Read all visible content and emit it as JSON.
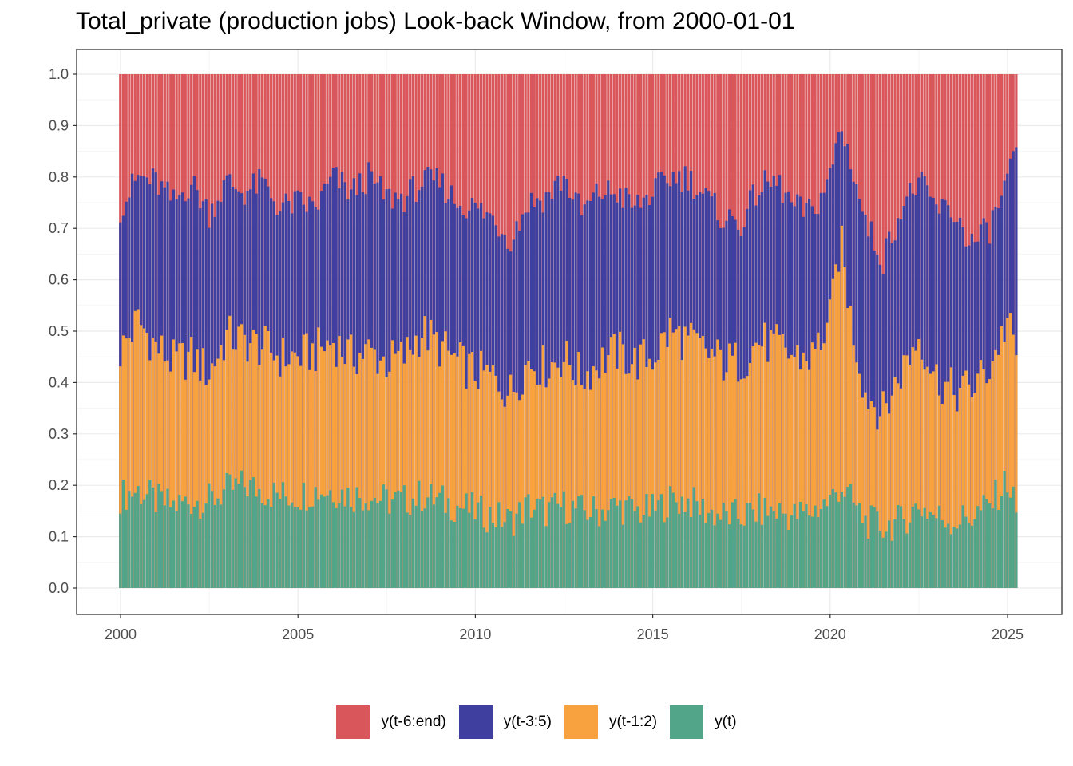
{
  "chart_data": {
    "type": "bar",
    "stacked": true,
    "title": "Total_private (production jobs) Look-back Window, from 2000-01-01",
    "xlabel": "",
    "ylabel": "",
    "ylim": [
      0,
      1.0
    ],
    "xlim": [
      1998.75,
      2026.3
    ],
    "y_ticks": [
      "0.0",
      "0.1",
      "0.2",
      "0.3",
      "0.4",
      "0.5",
      "0.6",
      "0.7",
      "0.8",
      "0.9",
      "1.0"
    ],
    "x_ticks": [
      "2000",
      "2005",
      "2010",
      "2015",
      "2020",
      "2025"
    ],
    "grid": true,
    "legend_position": "bottom",
    "frequency": "monthly",
    "start": "2000-01",
    "end": "2025-04",
    "x_anchor_dates": [
      2000.0,
      2000.5,
      2001.0,
      2001.5,
      2002.0,
      2002.5,
      2003.0,
      2003.5,
      2004.0,
      2004.5,
      2005.0,
      2005.5,
      2006.0,
      2006.5,
      2007.0,
      2007.5,
      2008.0,
      2008.5,
      2009.0,
      2009.5,
      2010.0,
      2010.5,
      2011.0,
      2011.5,
      2012.0,
      2012.5,
      2013.0,
      2013.5,
      2014.0,
      2014.5,
      2015.0,
      2015.5,
      2016.0,
      2016.5,
      2017.0,
      2017.5,
      2018.0,
      2018.5,
      2019.0,
      2019.5,
      2020.0,
      2020.3,
      2020.6,
      2021.0,
      2021.5,
      2022.0,
      2022.5,
      2023.0,
      2023.5,
      2024.0,
      2024.5,
      2025.0,
      2025.25
    ],
    "series": [
      {
        "name": "y(t)",
        "color": "#52A589",
        "anchor_cumulative": [
          0.18,
          0.19,
          0.17,
          0.16,
          0.17,
          0.17,
          0.19,
          0.2,
          0.19,
          0.18,
          0.18,
          0.19,
          0.19,
          0.18,
          0.18,
          0.17,
          0.17,
          0.18,
          0.17,
          0.16,
          0.15,
          0.14,
          0.13,
          0.16,
          0.15,
          0.16,
          0.15,
          0.15,
          0.16,
          0.15,
          0.15,
          0.17,
          0.17,
          0.15,
          0.14,
          0.14,
          0.15,
          0.15,
          0.14,
          0.15,
          0.17,
          0.2,
          0.17,
          0.13,
          0.12,
          0.13,
          0.16,
          0.14,
          0.13,
          0.14,
          0.16,
          0.21,
          0.15
        ]
      },
      {
        "name": "y(t-1:2)",
        "color": "#F7A23F",
        "anchor_cumulative": [
          0.46,
          0.52,
          0.47,
          0.44,
          0.45,
          0.42,
          0.49,
          0.48,
          0.47,
          0.45,
          0.45,
          0.46,
          0.48,
          0.45,
          0.46,
          0.44,
          0.45,
          0.5,
          0.47,
          0.44,
          0.42,
          0.41,
          0.38,
          0.44,
          0.43,
          0.45,
          0.41,
          0.44,
          0.46,
          0.44,
          0.45,
          0.5,
          0.48,
          0.46,
          0.44,
          0.44,
          0.48,
          0.47,
          0.45,
          0.45,
          0.52,
          0.68,
          0.52,
          0.38,
          0.34,
          0.42,
          0.49,
          0.41,
          0.38,
          0.39,
          0.43,
          0.52,
          0.45
        ]
      },
      {
        "name": "y(t-3:5)",
        "color": "#3F3F9F",
        "anchor_cumulative": [
          0.74,
          0.8,
          0.79,
          0.75,
          0.79,
          0.73,
          0.79,
          0.77,
          0.79,
          0.74,
          0.75,
          0.74,
          0.8,
          0.77,
          0.8,
          0.76,
          0.76,
          0.79,
          0.79,
          0.75,
          0.74,
          0.72,
          0.68,
          0.75,
          0.76,
          0.8,
          0.73,
          0.77,
          0.77,
          0.74,
          0.77,
          0.8,
          0.8,
          0.76,
          0.72,
          0.71,
          0.78,
          0.79,
          0.74,
          0.73,
          0.8,
          0.9,
          0.83,
          0.71,
          0.64,
          0.74,
          0.79,
          0.74,
          0.73,
          0.67,
          0.7,
          0.79,
          0.84
        ]
      },
      {
        "name": "y(t-6:end)",
        "color": "#D9575B",
        "anchor_cumulative": [
          1.0,
          1.0,
          1.0,
          1.0,
          1.0,
          1.0,
          1.0,
          1.0,
          1.0,
          1.0,
          1.0,
          1.0,
          1.0,
          1.0,
          1.0,
          1.0,
          1.0,
          1.0,
          1.0,
          1.0,
          1.0,
          1.0,
          1.0,
          1.0,
          1.0,
          1.0,
          1.0,
          1.0,
          1.0,
          1.0,
          1.0,
          1.0,
          1.0,
          1.0,
          1.0,
          1.0,
          1.0,
          1.0,
          1.0,
          1.0,
          1.0,
          1.0,
          1.0,
          1.0,
          1.0,
          1.0,
          1.0,
          1.0,
          1.0,
          1.0,
          1.0,
          1.0,
          1.0
        ]
      }
    ],
    "legend": [
      "y(t-6:end)",
      "y(t-3:5)",
      "y(t-1:2)",
      "y(t)"
    ],
    "colors": {
      "panel_border": "#333333",
      "grid_major": "#EBEBEB",
      "grid_minor": "#F5F5F5",
      "tick_label": "#4D4D4D",
      "bar_gap": "#FFFFFF"
    }
  }
}
